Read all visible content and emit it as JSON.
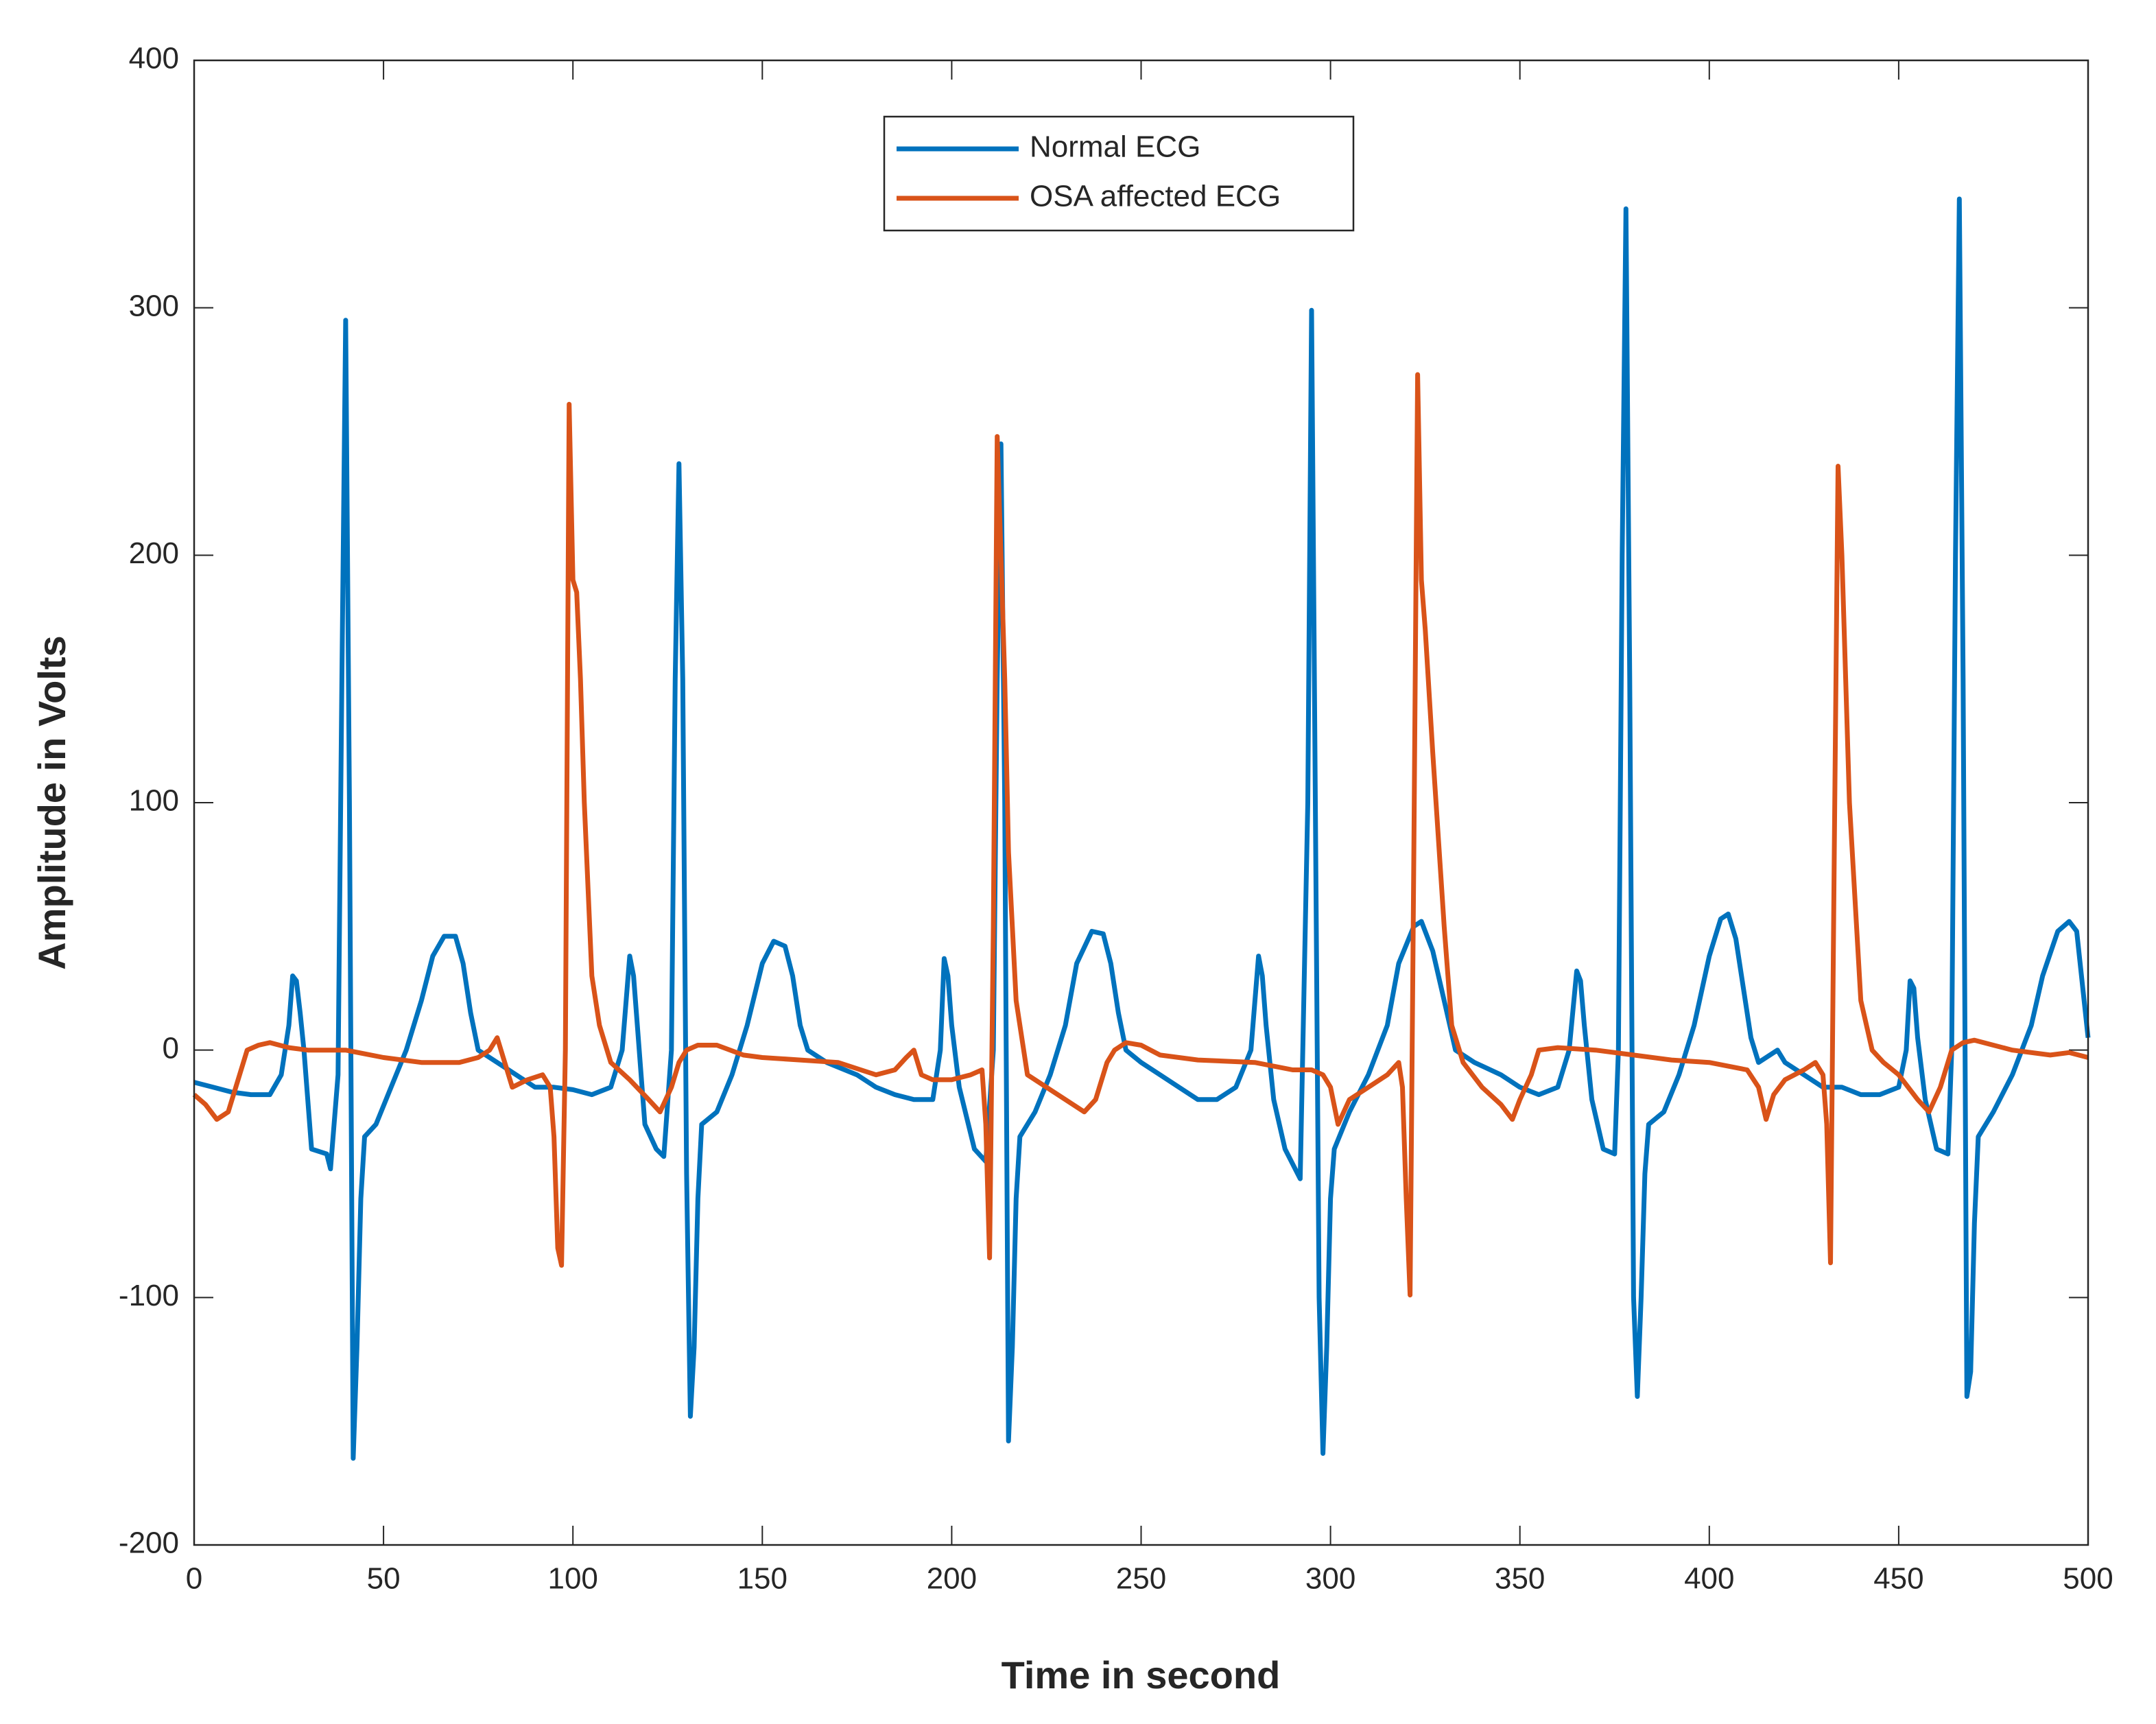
{
  "chart_data": {
    "type": "line",
    "xlabel": "Time in second",
    "ylabel": "Amplitude in Volts",
    "xlim": [
      0,
      500
    ],
    "xticks": [
      0,
      50,
      100,
      150,
      200,
      250,
      300,
      350,
      400,
      450,
      500
    ],
    "ylim": [
      -200,
      400
    ],
    "yticks": [
      -200,
      -100,
      0,
      100,
      200,
      300,
      400
    ],
    "grid": false,
    "legend": "top",
    "series": [
      {
        "name": "Normal ECG",
        "color": "#0072bd",
        "x": [
          0,
          5,
          10,
          15,
          20,
          23,
          25,
          26,
          27,
          28,
          29,
          31,
          35,
          36,
          38,
          39,
          40,
          41,
          42,
          43,
          44,
          45,
          48,
          52,
          56,
          60,
          63,
          66,
          69,
          71,
          73,
          75,
          80,
          85,
          90,
          95,
          100,
          105,
          110,
          113,
          115,
          116,
          117,
          119,
          122,
          124,
          126,
          127,
          128,
          129,
          130,
          131,
          132,
          133,
          134,
          138,
          142,
          146,
          150,
          153,
          156,
          158,
          160,
          162,
          167,
          175,
          180,
          185,
          190,
          195,
          197,
          198,
          199,
          200,
          202,
          206,
          209,
          211,
          212,
          213,
          214,
          215,
          216,
          217,
          218,
          222,
          226,
          230,
          233,
          237,
          240,
          242,
          244,
          246,
          250,
          255,
          260,
          265,
          270,
          275,
          279,
          281,
          282,
          283,
          285,
          288,
          292,
          294,
          295,
          296,
          297,
          298,
          299,
          300,
          301,
          305,
          310,
          315,
          318,
          322,
          324,
          327,
          330,
          333,
          338,
          345,
          350,
          355,
          360,
          363,
          365,
          366,
          367,
          369,
          372,
          375,
          376,
          377,
          378,
          379,
          380,
          381,
          382,
          383,
          384,
          388,
          392,
          396,
          400,
          403,
          405,
          407,
          409,
          411,
          413,
          418,
          420,
          425,
          430,
          435,
          440,
          445,
          450,
          452,
          453,
          454,
          455,
          457,
          460,
          463,
          464,
          465,
          466,
          467,
          468,
          469,
          470,
          471,
          475,
          480,
          485,
          488,
          492,
          495,
          497,
          500
        ],
        "values": [
          -13,
          -15,
          -17,
          -18,
          -18,
          -10,
          10,
          30,
          28,
          15,
          0,
          -40,
          -42,
          -48,
          -10,
          150,
          295,
          100,
          -165,
          -120,
          -60,
          -35,
          -30,
          -15,
          0,
          20,
          38,
          46,
          46,
          35,
          15,
          0,
          -5,
          -10,
          -15,
          -15,
          -16,
          -18,
          -15,
          0,
          38,
          30,
          10,
          -30,
          -40,
          -43,
          0,
          150,
          237,
          150,
          -50,
          -148,
          -120,
          -60,
          -30,
          -25,
          -10,
          10,
          35,
          44,
          42,
          30,
          10,
          0,
          -5,
          -10,
          -15,
          -18,
          -20,
          -20,
          0,
          37,
          30,
          10,
          -15,
          -40,
          -45,
          0,
          150,
          245,
          100,
          -158,
          -120,
          -60,
          -35,
          -25,
          -10,
          10,
          35,
          48,
          47,
          35,
          15,
          0,
          -5,
          -10,
          -15,
          -20,
          -20,
          -15,
          0,
          38,
          30,
          10,
          -20,
          -40,
          -52,
          100,
          299,
          100,
          -100,
          -163,
          -120,
          -60,
          -40,
          -25,
          -10,
          10,
          35,
          50,
          52,
          40,
          20,
          0,
          -5,
          -10,
          -15,
          -18,
          -15,
          0,
          32,
          28,
          10,
          -20,
          -40,
          -42,
          0,
          200,
          340,
          150,
          -100,
          -140,
          -100,
          -50,
          -30,
          -25,
          -10,
          10,
          38,
          53,
          55,
          45,
          25,
          5,
          -5,
          0,
          -5,
          -10,
          -15,
          -15,
          -18,
          -18,
          -15,
          0,
          28,
          25,
          5,
          -20,
          -40,
          -42,
          0,
          200,
          344,
          150,
          -140,
          -130,
          -70,
          -35,
          -25,
          -10,
          10,
          30,
          48,
          52,
          48,
          5
        ]
      },
      {
        "name": "OSA affected ECG",
        "color": "#d95319",
        "x": [
          0,
          3,
          6,
          9,
          12,
          14,
          17,
          20,
          25,
          30,
          40,
          50,
          60,
          70,
          75,
          78,
          80,
          82,
          84,
          88,
          92,
          94,
          95,
          96,
          97,
          98,
          99,
          100,
          101,
          102,
          103,
          105,
          107,
          110,
          115,
          120,
          123,
          126,
          128,
          130,
          133,
          138,
          145,
          150,
          160,
          170,
          180,
          185,
          188,
          190,
          192,
          195,
          200,
          205,
          208,
          209,
          210,
          211,
          212,
          213,
          214,
          215,
          217,
          220,
          225,
          230,
          235,
          238,
          241,
          243,
          246,
          250,
          255,
          265,
          280,
          290,
          295,
          298,
          300,
          302,
          305,
          310,
          315,
          318,
          319,
          320,
          321,
          322,
          323,
          324,
          325,
          327,
          330,
          332,
          335,
          340,
          345,
          348,
          350,
          353,
          355,
          360,
          370,
          380,
          390,
          400,
          410,
          413,
          415,
          417,
          420,
          425,
          428,
          430,
          431,
          432,
          433,
          434,
          435,
          436,
          437,
          440,
          443,
          446,
          450,
          455,
          458,
          461,
          464,
          467,
          470,
          475,
          480,
          490,
          495,
          500
        ],
        "values": [
          -18,
          -22,
          -28,
          -25,
          -10,
          0,
          2,
          3,
          1,
          0,
          0,
          -3,
          -5,
          -5,
          -3,
          0,
          5,
          -5,
          -15,
          -12,
          -10,
          -15,
          -35,
          -80,
          -87,
          0,
          261,
          190,
          185,
          150,
          100,
          30,
          10,
          -5,
          -12,
          -20,
          -25,
          -15,
          -5,
          0,
          2,
          2,
          -2,
          -3,
          -4,
          -5,
          -10,
          -8,
          -3,
          0,
          -10,
          -12,
          -12,
          -10,
          -8,
          -30,
          -84,
          50,
          248,
          200,
          150,
          80,
          20,
          -10,
          -15,
          -20,
          -25,
          -20,
          -5,
          0,
          3,
          2,
          -2,
          -4,
          -5,
          -8,
          -8,
          -10,
          -15,
          -30,
          -20,
          -15,
          -10,
          -5,
          -15,
          -60,
          -99,
          80,
          273,
          190,
          170,
          120,
          50,
          10,
          -5,
          -15,
          -22,
          -28,
          -20,
          -10,
          0,
          1,
          0,
          -2,
          -4,
          -5,
          -8,
          -15,
          -28,
          -18,
          -12,
          -8,
          -5,
          -10,
          -30,
          -86,
          80,
          236,
          200,
          150,
          100,
          20,
          0,
          -5,
          -10,
          -20,
          -25,
          -15,
          0,
          3,
          4,
          2,
          0,
          -2,
          -1,
          -3
        ]
      }
    ]
  }
}
